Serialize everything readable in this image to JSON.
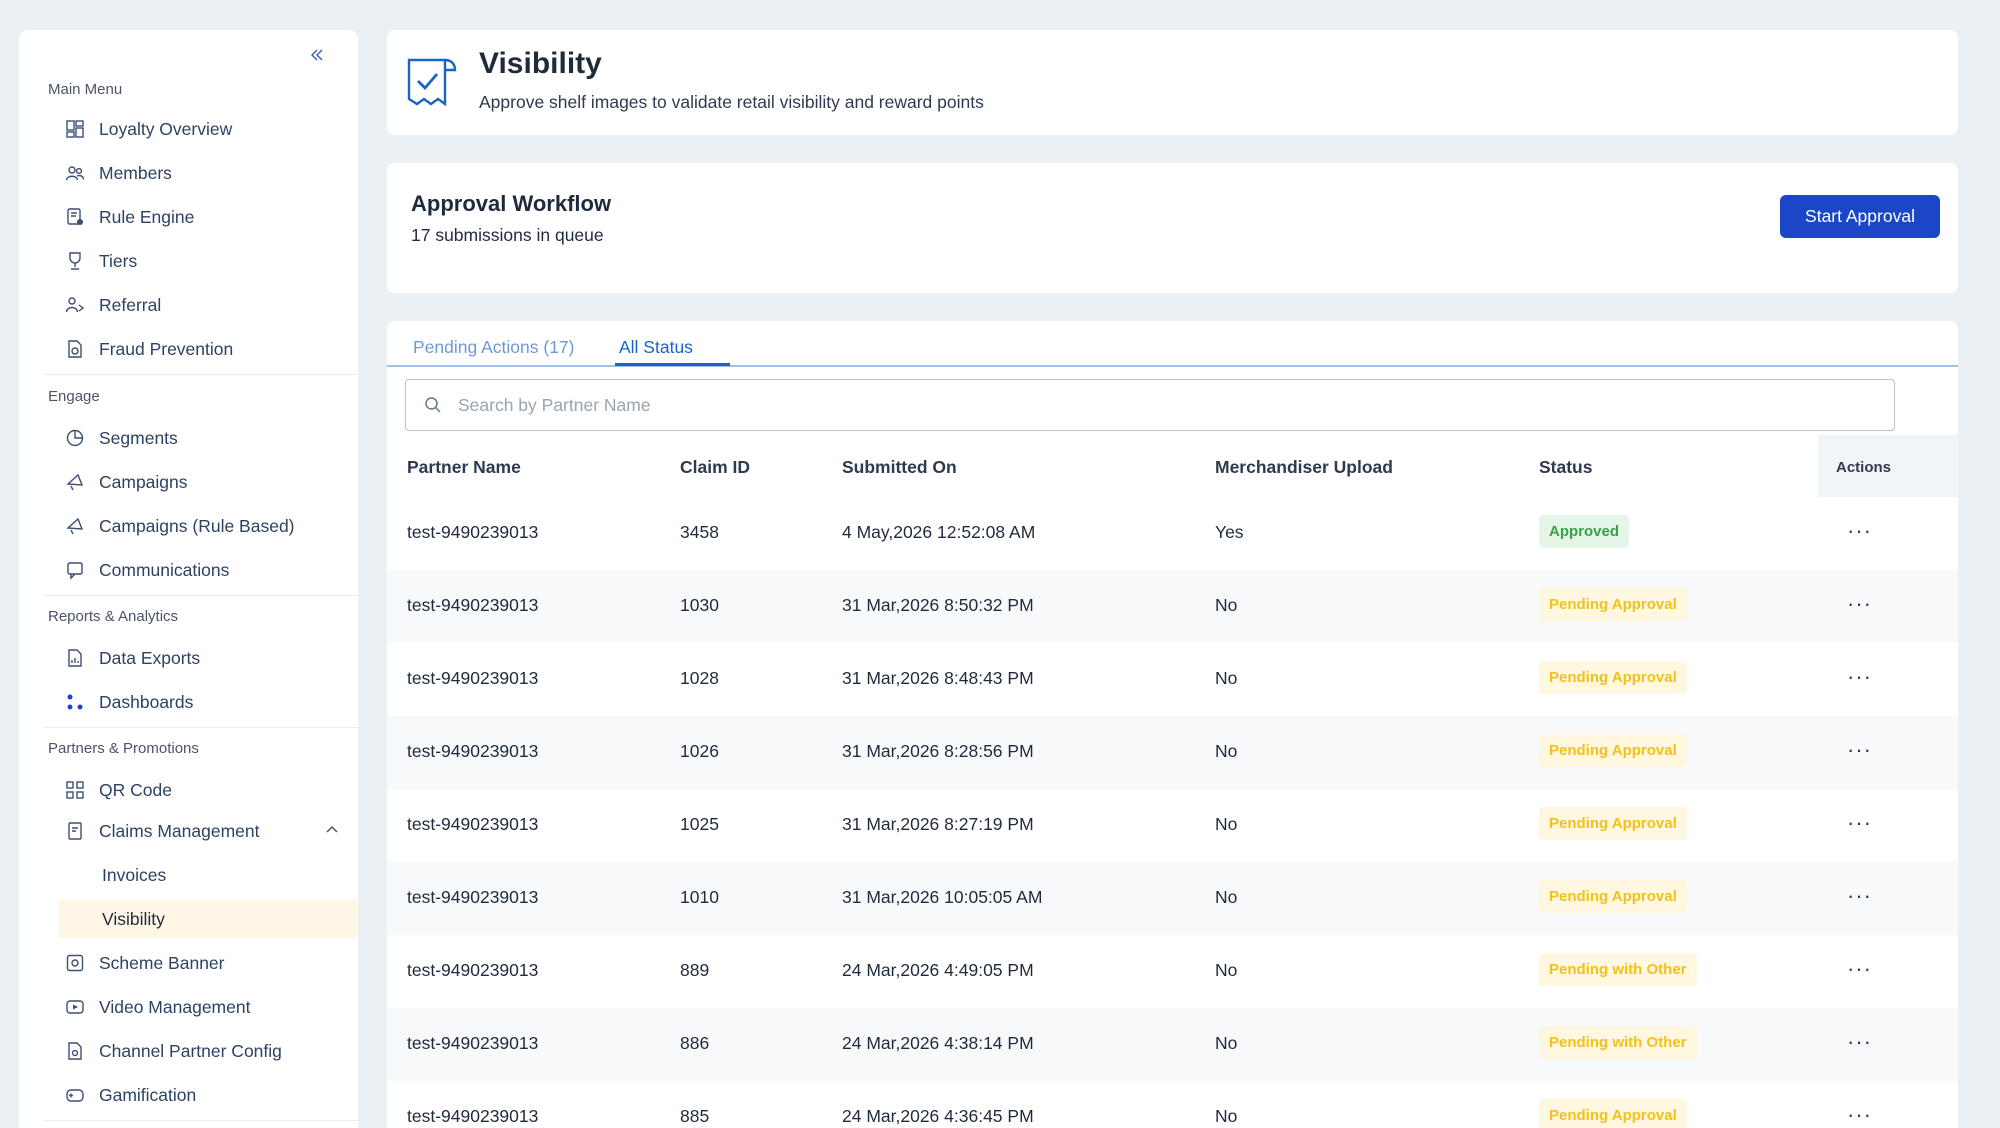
{
  "sidebar": {
    "sections": [
      "Main Menu",
      "Engage",
      "Reports & Analytics",
      "Partners & Promotions"
    ],
    "items": [
      {
        "label": "Loyalty Overview",
        "icon": "dashboard-grid-icon"
      },
      {
        "label": "Members",
        "icon": "users-icon"
      },
      {
        "label": "Rule Engine",
        "icon": "rule-engine-icon"
      },
      {
        "label": "Tiers",
        "icon": "trophy-icon"
      },
      {
        "label": "Referral",
        "icon": "referral-icon"
      },
      {
        "label": "Fraud Prevention",
        "icon": "fraud-shield-icon"
      },
      {
        "label": "Segments",
        "icon": "pie-chart-icon"
      },
      {
        "label": "Campaigns",
        "icon": "megaphone-icon"
      },
      {
        "label": "Campaigns (Rule Based)",
        "icon": "megaphone-icon"
      },
      {
        "label": "Communications",
        "icon": "message-icon"
      },
      {
        "label": "Data Exports",
        "icon": "file-chart-icon"
      },
      {
        "label": "Dashboards",
        "icon": "nodes-icon"
      },
      {
        "label": "QR Code",
        "icon": "qr-code-icon"
      },
      {
        "label": "Claims Management",
        "icon": "document-icon"
      },
      {
        "label": "Invoices"
      },
      {
        "label": "Visibility"
      },
      {
        "label": "Scheme Banner",
        "icon": "image-icon"
      },
      {
        "label": "Video Management",
        "icon": "video-icon"
      },
      {
        "label": "Channel Partner Config",
        "icon": "config-icon"
      },
      {
        "label": "Gamification",
        "icon": "gamepad-icon"
      }
    ]
  },
  "header": {
    "title": "Visibility",
    "subtitle": "Approve shelf images to validate retail visibility and reward points"
  },
  "workflow": {
    "title": "Approval Workflow",
    "subtitle": "17 submissions in queue",
    "button": "Start Approval"
  },
  "tabs": {
    "pending": "Pending Actions (17)",
    "all": "All Status"
  },
  "search": {
    "placeholder": "Search by Partner Name"
  },
  "table": {
    "columns": [
      "Partner Name",
      "Claim ID",
      "Submitted On",
      "Merchandiser Upload",
      "Status",
      "Actions"
    ],
    "rows": [
      {
        "partner": "test-9490239013",
        "claim": "3458",
        "submitted": "4 May,2026 12:52:08 AM",
        "upload": "Yes",
        "status": "Approved",
        "kind": "approved"
      },
      {
        "partner": "test-9490239013",
        "claim": "1030",
        "submitted": "31 Mar,2026 8:50:32 PM",
        "upload": "No",
        "status": "Pending Approval",
        "kind": "pending"
      },
      {
        "partner": "test-9490239013",
        "claim": "1028",
        "submitted": "31 Mar,2026 8:48:43 PM",
        "upload": "No",
        "status": "Pending Approval",
        "kind": "pending"
      },
      {
        "partner": "test-9490239013",
        "claim": "1026",
        "submitted": "31 Mar,2026 8:28:56 PM",
        "upload": "No",
        "status": "Pending Approval",
        "kind": "pending"
      },
      {
        "partner": "test-9490239013",
        "claim": "1025",
        "submitted": "31 Mar,2026 8:27:19 PM",
        "upload": "No",
        "status": "Pending Approval",
        "kind": "pending"
      },
      {
        "partner": "test-9490239013",
        "claim": "1010",
        "submitted": "31 Mar,2026 10:05:05 AM",
        "upload": "No",
        "status": "Pending Approval",
        "kind": "pending"
      },
      {
        "partner": "test-9490239013",
        "claim": "889",
        "submitted": "24 Mar,2026 4:49:05 PM",
        "upload": "No",
        "status": "Pending with Other",
        "kind": "pending"
      },
      {
        "partner": "test-9490239013",
        "claim": "886",
        "submitted": "24 Mar,2026 4:38:14 PM",
        "upload": "No",
        "status": "Pending with Other",
        "kind": "pending"
      },
      {
        "partner": "test-9490239013",
        "claim": "885",
        "submitted": "24 Mar,2026 4:36:45 PM",
        "upload": "No",
        "status": "Pending Approval",
        "kind": "pending"
      }
    ]
  },
  "colors": {
    "primary": "#1a46c7",
    "tab_active": "#1a63c7",
    "approved": "#3aa04a",
    "pending": "#f2c21b",
    "active_nav_bg": "#fff6e6"
  }
}
